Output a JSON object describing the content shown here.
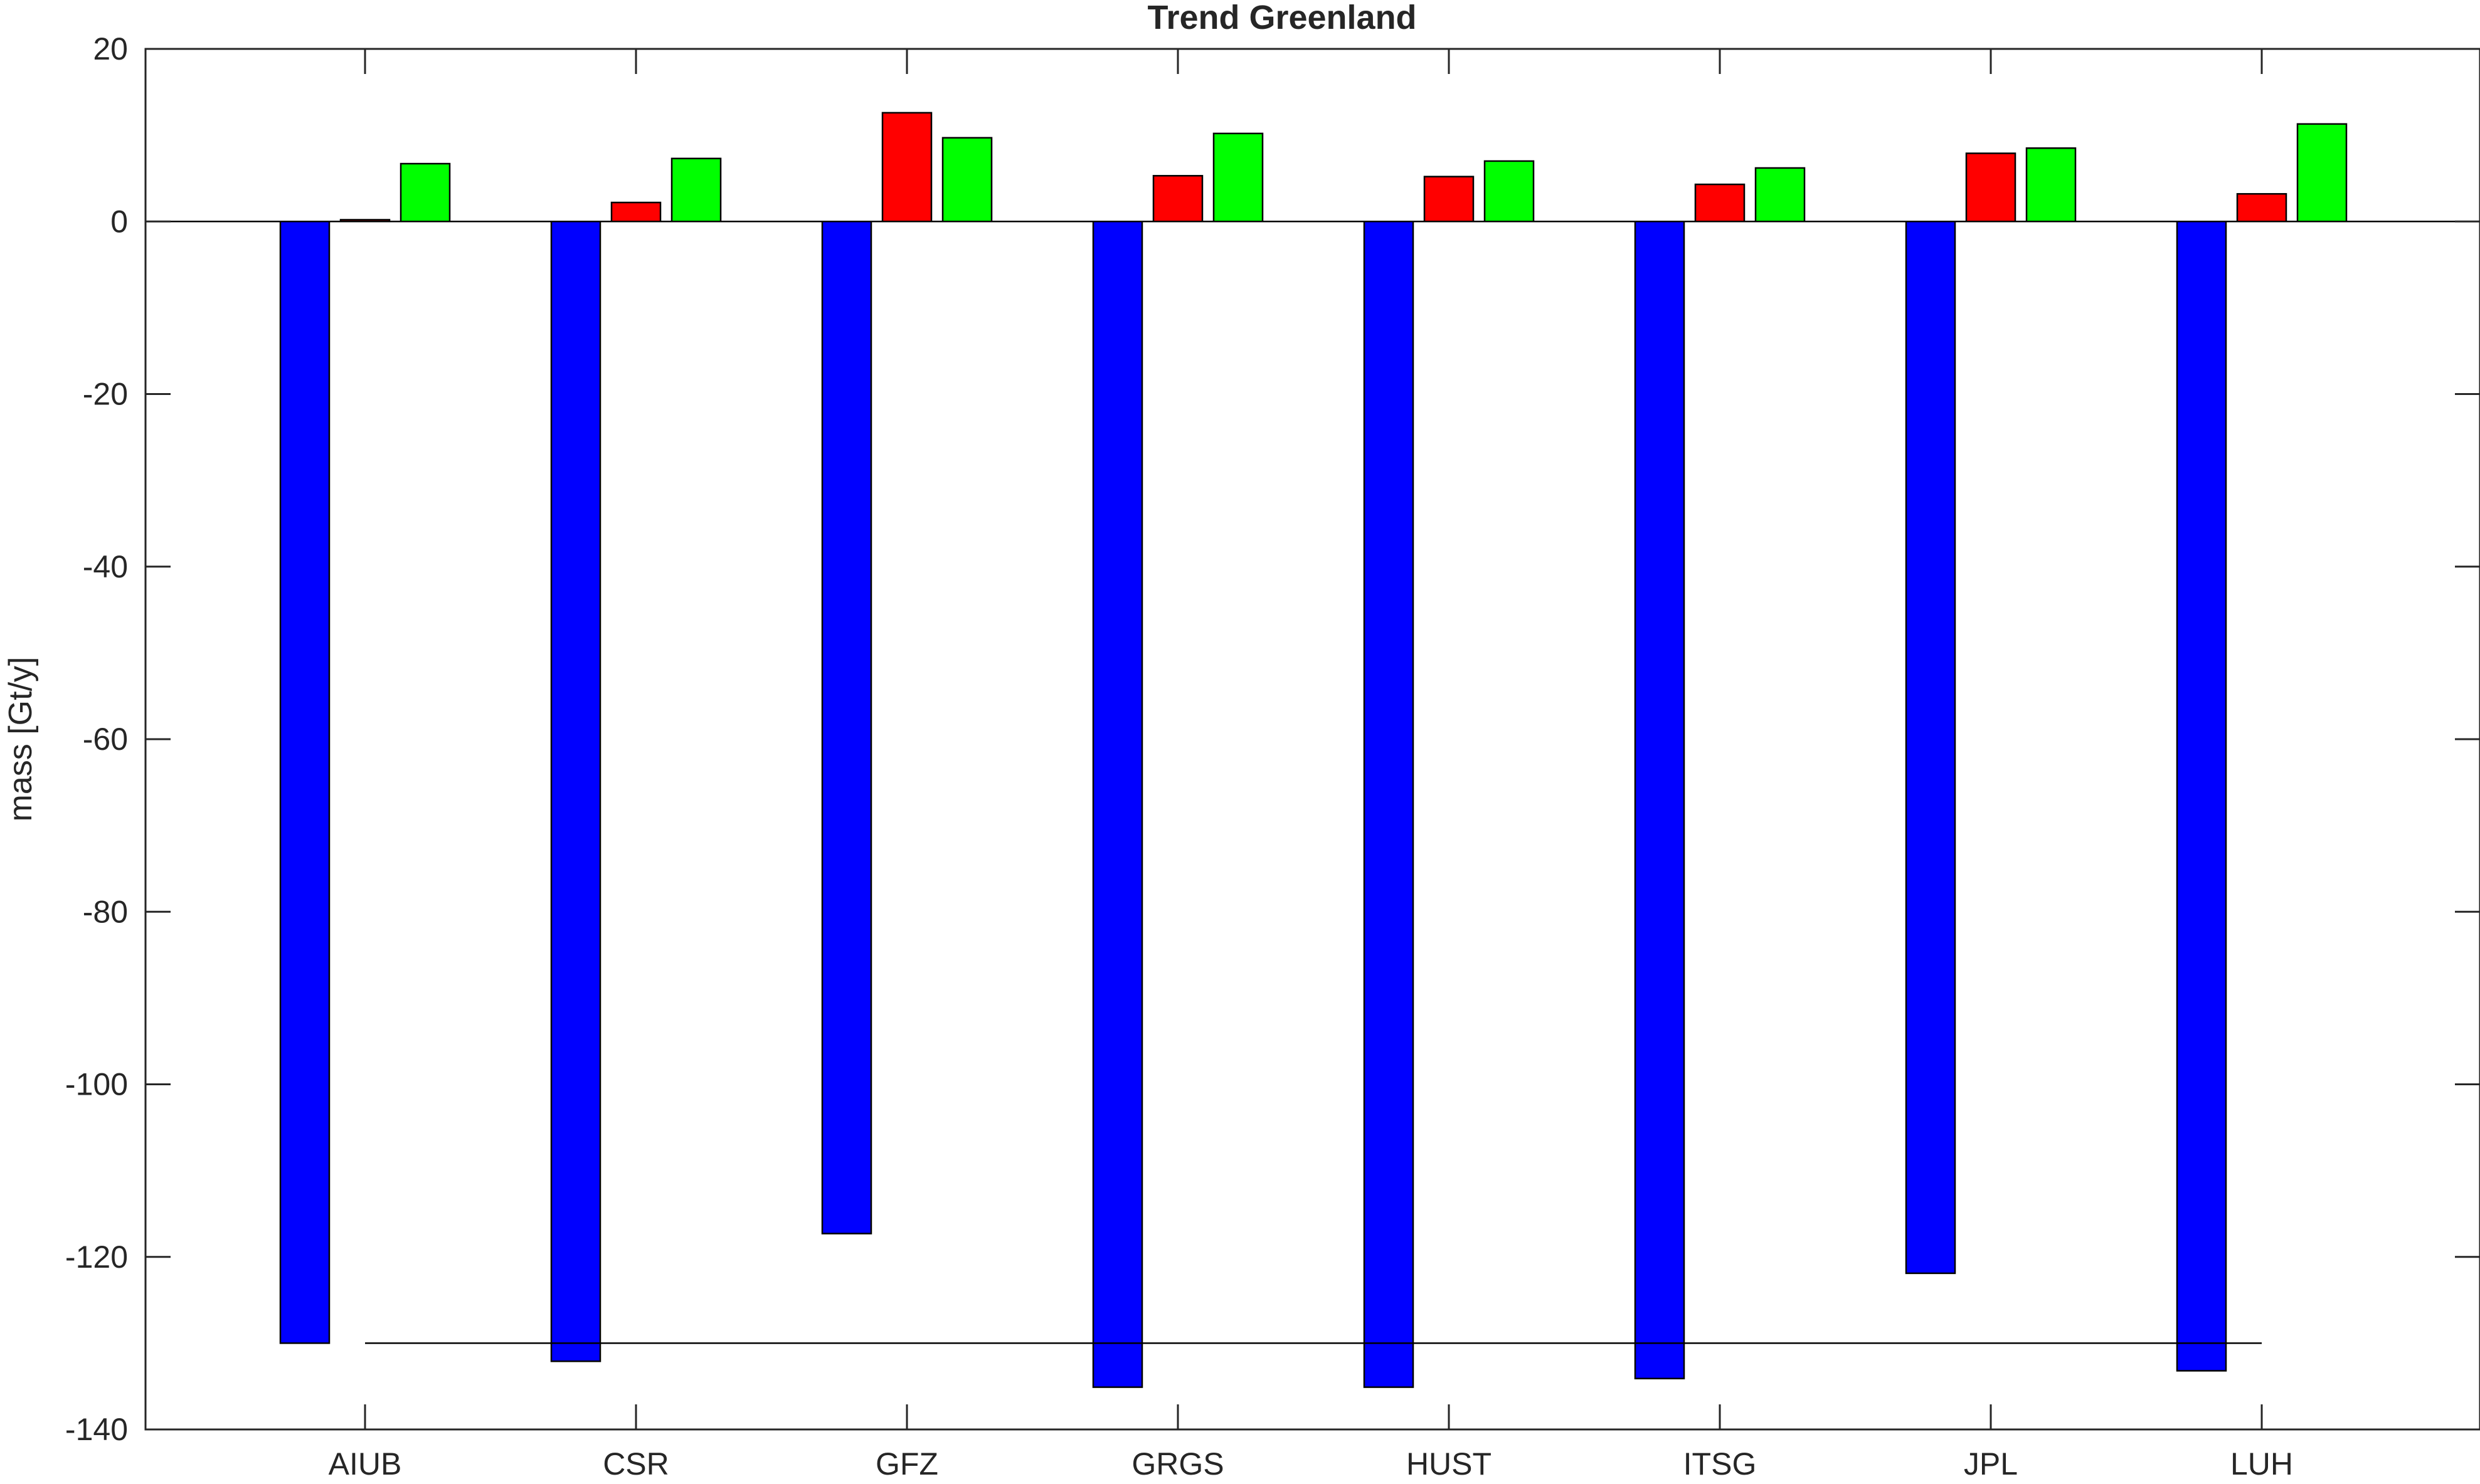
{
  "chart_data": {
    "type": "bar",
    "title": "Trend Greenland",
    "xlabel": "",
    "ylabel": "mass [Gt/y]",
    "categories": [
      "AIUB",
      "CSR",
      "GFZ",
      "GRGS",
      "HUST",
      "ITSG",
      "JPL",
      "LUH"
    ],
    "ylim": [
      -140,
      20
    ],
    "yticks": [
      20,
      0,
      -20,
      -40,
      -60,
      -80,
      -100,
      -120,
      -140
    ],
    "grid": false,
    "series": [
      {
        "color": "#0000ff",
        "values": [
          -130,
          -132.1,
          -117.3,
          -135.1,
          -135.1,
          -134.1,
          -121.9,
          -133.2
        ]
      },
      {
        "color": "#ff0000",
        "values": [
          0.2,
          2.2,
          12.6,
          5.3,
          5.2,
          4.3,
          7.9,
          3.2
        ]
      },
      {
        "color": "#00ff00",
        "values": [
          6.7,
          7.3,
          9.7,
          10.2,
          7.0,
          6.2,
          8.5,
          11.3
        ]
      }
    ],
    "reference_line": {
      "value": -130,
      "from_category": "AIUB",
      "to_category": "LUH",
      "color": "#000000"
    }
  }
}
